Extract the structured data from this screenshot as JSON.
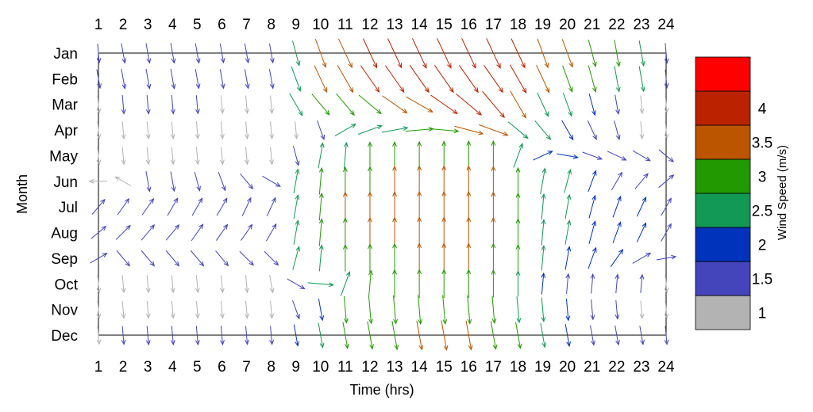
{
  "chart_data": {
    "type": "vector-field",
    "xlabel": "Time (hrs)",
    "ylabel": "Month",
    "x_ticks": [
      "1",
      "2",
      "3",
      "4",
      "5",
      "6",
      "7",
      "8",
      "9",
      "10",
      "11",
      "12",
      "13",
      "14",
      "15",
      "16",
      "17",
      "18",
      "19",
      "20",
      "21",
      "22",
      "23",
      "24"
    ],
    "y_ticks": [
      "Jan",
      "Feb",
      "Mar",
      "Apr",
      "May",
      "Jun",
      "Jul",
      "Aug",
      "Sep",
      "Oct",
      "Nov",
      "Dec"
    ],
    "xlim": [
      1,
      24
    ],
    "colorbar": {
      "title": "Wind Speed (m/s)",
      "ticks": [
        "1",
        "1.5",
        "2",
        "2.5",
        "3",
        "3.5",
        "4"
      ],
      "range": [
        0.75,
        4.25
      ],
      "bands": [
        {
          "from": 0.75,
          "to": 1.25,
          "color": "#b3b3b3"
        },
        {
          "from": 1.25,
          "to": 1.75,
          "color": "#4444bb"
        },
        {
          "from": 1.75,
          "to": 2.25,
          "color": "#0033bb"
        },
        {
          "from": 2.25,
          "to": 2.75,
          "color": "#119955"
        },
        {
          "from": 2.75,
          "to": 3.25,
          "color": "#229900"
        },
        {
          "from": 3.25,
          "to": 3.75,
          "color": "#bb5500"
        },
        {
          "from": 3.75,
          "to": 4.25,
          "color": "#bb2200"
        },
        {
          "from": 4.25,
          "to": 4.75,
          "color": "#ff0000"
        }
      ]
    },
    "rows": [
      {
        "month": "Jan",
        "speeds": [
          1.4,
          1.6,
          1.6,
          1.6,
          1.6,
          1.5,
          1.5,
          1.5,
          2.6,
          3.4,
          3.7,
          3.8,
          3.8,
          3.9,
          3.9,
          3.9,
          3.9,
          3.8,
          3.5,
          3.3,
          3.0,
          2.8,
          2.6,
          1.6
        ],
        "dirs": [
          5,
          10,
          10,
          10,
          10,
          10,
          10,
          10,
          15,
          20,
          25,
          25,
          25,
          25,
          25,
          25,
          25,
          25,
          20,
          20,
          15,
          10,
          10,
          5
        ]
      },
      {
        "month": "Feb",
        "speeds": [
          1.4,
          1.6,
          1.6,
          1.6,
          1.5,
          1.5,
          1.5,
          1.5,
          2.7,
          3.3,
          3.6,
          3.8,
          3.8,
          3.9,
          3.9,
          3.9,
          3.9,
          3.8,
          3.4,
          3.0,
          2.9,
          2.7,
          2.6,
          1.3
        ],
        "dirs": [
          10,
          10,
          10,
          10,
          10,
          10,
          10,
          10,
          20,
          25,
          30,
          35,
          35,
          35,
          35,
          35,
          35,
          30,
          25,
          20,
          15,
          10,
          10,
          5
        ]
      },
      {
        "month": "Mar",
        "speeds": [
          1.1,
          1.4,
          1.4,
          1.4,
          1.3,
          1.2,
          1.2,
          1.2,
          2.6,
          2.9,
          3.0,
          3.2,
          3.4,
          3.5,
          3.8,
          3.9,
          4.1,
          3.6,
          2.7,
          2.4,
          2.0,
          1.5,
          1.2,
          1.0
        ],
        "dirs": [
          5,
          5,
          5,
          5,
          5,
          5,
          5,
          5,
          30,
          40,
          40,
          50,
          55,
          60,
          55,
          50,
          40,
          30,
          25,
          20,
          15,
          10,
          5,
          5
        ]
      },
      {
        "month": "Apr",
        "speeds": [
          1.1,
          1.1,
          1.1,
          1.1,
          1.1,
          1.1,
          1.1,
          1.1,
          1.1,
          1.6,
          2.3,
          2.5,
          2.7,
          3.0,
          3.2,
          3.3,
          3.5,
          2.6,
          2.4,
          2.0,
          1.7,
          1.5,
          1.1,
          1.0
        ],
        "dirs": [
          5,
          5,
          5,
          5,
          5,
          5,
          5,
          5,
          5,
          20,
          120,
          110,
          100,
          95,
          85,
          75,
          70,
          50,
          40,
          30,
          25,
          15,
          5,
          5
        ]
      },
      {
        "month": "May",
        "speeds": [
          1.1,
          1.1,
          1.1,
          1.1,
          1.1,
          1.1,
          1.1,
          1.1,
          1.6,
          2.6,
          2.7,
          2.8,
          2.9,
          3.0,
          3.1,
          3.2,
          3.2,
          2.6,
          1.8,
          1.8,
          1.7,
          1.7,
          1.6,
          1.4
        ],
        "dirs": [
          5,
          5,
          5,
          5,
          5,
          5,
          5,
          5,
          15,
          170,
          175,
          180,
          180,
          180,
          180,
          180,
          180,
          160,
          115,
          80,
          70,
          65,
          60,
          50
        ]
      },
      {
        "month": "Jun",
        "speeds": [
          1.2,
          1.2,
          1.7,
          1.6,
          1.5,
          1.5,
          1.5,
          1.7,
          2.4,
          2.8,
          3.0,
          3.2,
          3.4,
          3.5,
          3.5,
          3.5,
          3.3,
          2.8,
          2.7,
          2.3,
          2.0,
          1.7,
          1.6,
          1.5
        ],
        "dirs": [
          270,
          240,
          10,
          10,
          15,
          20,
          40,
          60,
          170,
          175,
          180,
          180,
          180,
          180,
          180,
          180,
          180,
          180,
          170,
          165,
          160,
          150,
          140,
          130
        ]
      },
      {
        "month": "Jul",
        "speeds": [
          1.5,
          1.6,
          1.6,
          1.6,
          1.6,
          1.6,
          1.6,
          1.6,
          2.3,
          2.9,
          3.3,
          3.3,
          3.4,
          3.5,
          3.5,
          3.5,
          3.3,
          2.9,
          2.6,
          2.4,
          2.2,
          2.0,
          1.8,
          1.6
        ],
        "dirs": [
          140,
          145,
          145,
          150,
          150,
          150,
          155,
          155,
          170,
          175,
          180,
          180,
          180,
          180,
          180,
          180,
          180,
          180,
          175,
          170,
          165,
          160,
          155,
          150
        ]
      },
      {
        "month": "Aug",
        "speeds": [
          1.5,
          1.6,
          1.6,
          1.6,
          1.6,
          1.5,
          1.5,
          1.5,
          2.4,
          2.9,
          3.2,
          3.3,
          3.4,
          3.5,
          3.5,
          3.5,
          3.3,
          2.9,
          2.6,
          2.4,
          2.2,
          2.0,
          1.8,
          1.6
        ],
        "dirs": [
          130,
          135,
          140,
          140,
          145,
          145,
          145,
          150,
          170,
          175,
          180,
          180,
          180,
          180,
          180,
          180,
          180,
          180,
          175,
          170,
          165,
          160,
          155,
          150
        ]
      },
      {
        "month": "Sep",
        "speeds": [
          1.5,
          1.6,
          1.6,
          1.6,
          1.6,
          1.5,
          1.5,
          1.5,
          2.3,
          2.7,
          2.8,
          3.0,
          3.2,
          3.3,
          3.3,
          3.3,
          3.2,
          2.8,
          2.5,
          2.2,
          2.0,
          1.8,
          1.7,
          1.5
        ],
        "dirs": [
          120,
          40,
          40,
          40,
          40,
          40,
          45,
          45,
          165,
          175,
          180,
          180,
          180,
          180,
          180,
          180,
          180,
          180,
          175,
          170,
          160,
          145,
          120,
          100
        ]
      },
      {
        "month": "Oct",
        "speeds": [
          1.1,
          1.1,
          1.1,
          1.1,
          1.1,
          1.1,
          1.1,
          1.2,
          1.6,
          2.6,
          2.6,
          2.8,
          3.0,
          3.1,
          3.1,
          3.1,
          2.9,
          2.6,
          1.8,
          1.6,
          1.5,
          1.4,
          1.3,
          1.1
        ],
        "dirs": [
          5,
          5,
          5,
          5,
          5,
          5,
          5,
          10,
          60,
          85,
          160,
          175,
          180,
          180,
          180,
          180,
          180,
          180,
          175,
          175,
          175,
          175,
          175,
          5
        ]
      },
      {
        "month": "Nov",
        "speeds": [
          1.1,
          1.1,
          1.1,
          1.1,
          1.1,
          1.1,
          1.1,
          1.1,
          1.5,
          1.9,
          2.8,
          3.0,
          3.1,
          3.2,
          3.2,
          3.1,
          2.9,
          2.7,
          2.3,
          1.9,
          1.6,
          1.4,
          1.2,
          1.1
        ],
        "dirs": [
          5,
          5,
          5,
          5,
          5,
          5,
          5,
          5,
          20,
          10,
          5,
          5,
          5,
          5,
          5,
          5,
          5,
          5,
          5,
          5,
          5,
          5,
          5,
          5
        ]
      },
      {
        "month": "Dec",
        "speeds": [
          1.2,
          1.3,
          1.4,
          1.4,
          1.4,
          1.4,
          1.3,
          1.3,
          1.9,
          2.5,
          2.8,
          3.0,
          3.2,
          3.3,
          3.4,
          3.3,
          3.1,
          2.8,
          2.4,
          2.0,
          1.6,
          1.5,
          1.4,
          1.3
        ],
        "dirs": [
          5,
          5,
          5,
          5,
          5,
          5,
          5,
          5,
          10,
          10,
          10,
          10,
          10,
          10,
          10,
          10,
          10,
          10,
          10,
          10,
          10,
          10,
          10,
          5
        ]
      }
    ]
  }
}
